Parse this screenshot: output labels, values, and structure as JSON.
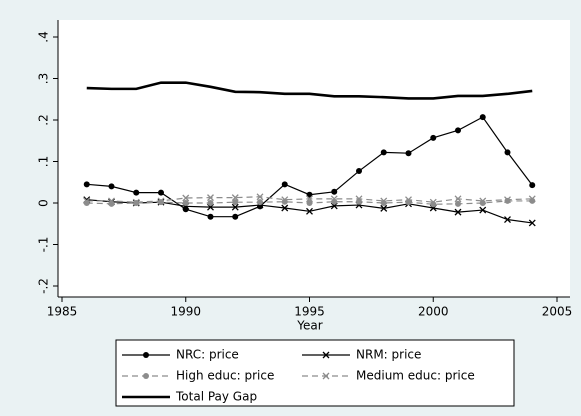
{
  "chart_data": {
    "type": "line",
    "xlabel": "Year",
    "x": [
      1986,
      1987,
      1988,
      1989,
      1990,
      1991,
      1992,
      1993,
      1994,
      1995,
      1996,
      1997,
      1998,
      1999,
      2000,
      2001,
      2002,
      2003,
      2004
    ],
    "xlim": [
      1985,
      2005
    ],
    "xticks": [
      1985,
      1990,
      1995,
      2000,
      2005
    ],
    "ylim": [
      -0.2,
      0.4
    ],
    "yticks": [
      {
        "value": 0.4,
        "label": ".4"
      },
      {
        "value": 0.3,
        "label": ".3"
      },
      {
        "value": 0.2,
        "label": ".2"
      },
      {
        "value": 0.1,
        "label": ".1"
      },
      0,
      {
        "value": -0.1,
        "label": "-.1"
      },
      {
        "value": -0.2,
        "label": "-.2"
      }
    ],
    "series": [
      {
        "name": "NRC: price",
        "color": "#000000",
        "marker": "circle",
        "dash": false,
        "width": 1.2,
        "values": [
          0.045,
          0.04,
          0.025,
          0.025,
          -0.015,
          -0.033,
          -0.033,
          -0.008,
          0.045,
          0.02,
          0.027,
          0.077,
          0.122,
          0.12,
          0.157,
          0.175,
          0.207,
          0.122,
          0.043
        ]
      },
      {
        "name": "NRM: price",
        "color": "#000000",
        "marker": "x",
        "dash": false,
        "width": 1.2,
        "values": [
          0.008,
          0.003,
          0.0,
          0.002,
          -0.008,
          -0.01,
          -0.01,
          -0.005,
          -0.012,
          -0.02,
          -0.007,
          -0.005,
          -0.013,
          -0.002,
          -0.012,
          -0.022,
          -0.017,
          -0.04,
          -0.048
        ]
      },
      {
        "name": "High educ: price",
        "color": "#8c8c8c",
        "marker": "circle",
        "dash": true,
        "width": 1.2,
        "values": [
          0.0,
          -0.002,
          0.0,
          0.002,
          0.0,
          0.0,
          0.002,
          0.002,
          0.003,
          0.0,
          0.003,
          0.003,
          0.0,
          0.002,
          -0.003,
          -0.002,
          0.0,
          0.005,
          0.005
        ]
      },
      {
        "name": "Medium educ: price",
        "color": "#8c8c8c",
        "marker": "x",
        "dash": true,
        "width": 1.2,
        "values": [
          0.005,
          0.005,
          0.002,
          0.005,
          0.012,
          0.013,
          0.013,
          0.015,
          0.008,
          0.01,
          0.01,
          0.01,
          0.005,
          0.008,
          0.002,
          0.01,
          0.005,
          0.008,
          0.01
        ]
      },
      {
        "name": "Total Pay Gap",
        "color": "#000000",
        "marker": "none",
        "dash": false,
        "width": 2.6,
        "values": [
          0.277,
          0.275,
          0.275,
          0.29,
          0.29,
          0.28,
          0.268,
          0.267,
          0.263,
          0.263,
          0.257,
          0.257,
          0.255,
          0.252,
          0.252,
          0.258,
          0.258,
          0.263,
          0.27
        ]
      }
    ]
  }
}
